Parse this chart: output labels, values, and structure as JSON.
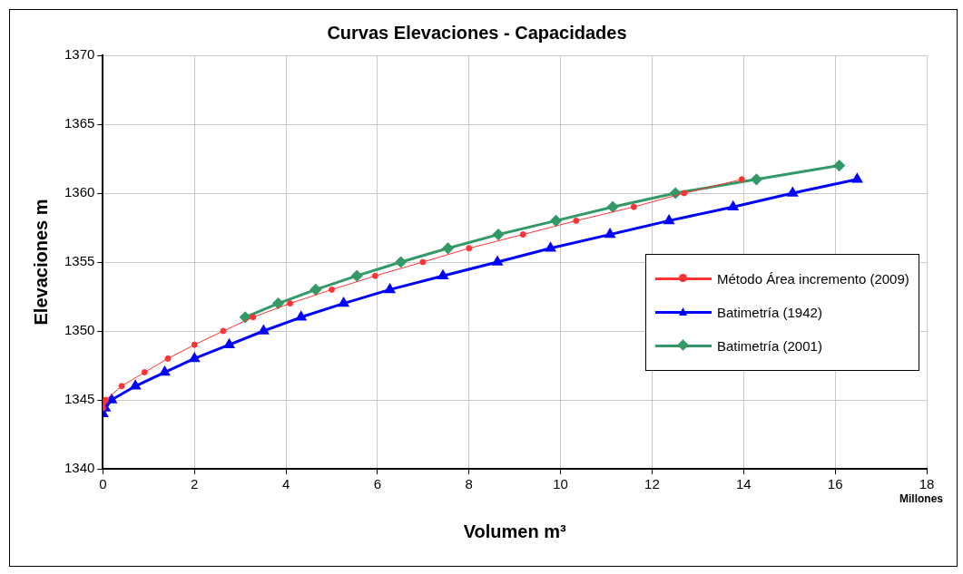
{
  "chart_data": {
    "type": "line",
    "title": "Curvas Elevaciones - Capacidades",
    "xlabel": "Volumen m³",
    "ylabel": "Elevaciones m",
    "annotations": [
      "Millones"
    ],
    "xlim": [
      0,
      18
    ],
    "xticks": [
      0,
      2,
      4,
      6,
      8,
      10,
      12,
      14,
      16,
      18
    ],
    "ylim": [
      1340,
      1370
    ],
    "yticks": [
      1340,
      1345,
      1350,
      1355,
      1360,
      1365,
      1370
    ],
    "grid": true,
    "legend": "right",
    "series": [
      {
        "name": "Método Área incremento (2009)",
        "color": "#ff3333",
        "marker": "circle",
        "x": [
          0,
          0,
          0.06,
          0.41,
          0.91,
          1.42,
          2.0,
          2.63,
          3.28,
          4.09,
          5.0,
          5.95,
          6.99,
          8.0,
          9.18,
          10.34,
          11.6,
          12.7,
          13.96
        ],
        "values": [
          1344.4,
          1344.7,
          1345,
          1346,
          1347,
          1348,
          1349,
          1350,
          1351,
          1352,
          1353,
          1354,
          1355,
          1356,
          1357,
          1358,
          1359,
          1360,
          1361
        ]
      },
      {
        "name": "Batimetría (1942)",
        "color": "#0000ff",
        "marker": "triangle",
        "x": [
          0,
          0.05,
          0.09,
          0.19,
          0.71,
          1.35,
          2.0,
          2.76,
          3.51,
          4.33,
          5.26,
          6.27,
          7.43,
          8.62,
          9.78,
          11.08,
          12.37,
          13.77,
          15.07,
          16.48
        ],
        "values": [
          1344,
          1344.4,
          null,
          1345,
          1346,
          1347,
          1348,
          1349,
          1350,
          1351,
          1352,
          1353,
          1354,
          1355,
          1356,
          1357,
          1358,
          1359,
          1360,
          1361
        ]
      },
      {
        "name": "Batimetría (2001)",
        "color": "#339966",
        "marker": "diamond",
        "x": [
          3.11,
          3.83,
          4.65,
          5.55,
          6.51,
          7.54,
          8.64,
          9.9,
          11.14,
          12.51,
          14.28,
          16.09
        ],
        "values": [
          1351,
          1352,
          1353,
          1354,
          1355,
          1356,
          1357,
          1358,
          1359,
          1360,
          1361,
          1362
        ]
      }
    ]
  }
}
